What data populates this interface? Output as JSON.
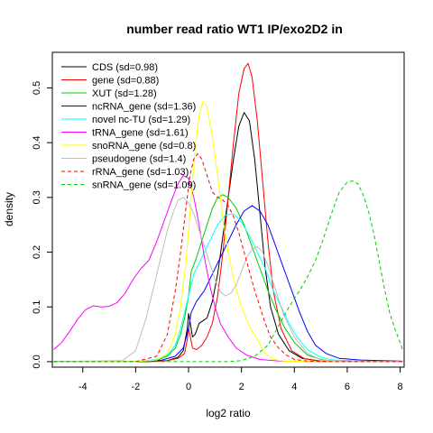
{
  "chart_data": {
    "type": "line",
    "title": "number read ratio WT1 IP/exo2D2 in",
    "xlabel": "log2 ratio",
    "ylabel": "density",
    "xlim": [
      -5.15,
      8.15
    ],
    "ylim": [
      -0.01,
      0.565
    ],
    "x_ticks": [
      -4,
      -2,
      0,
      2,
      4,
      6,
      8
    ],
    "y_ticks": [
      0.0,
      0.1,
      0.2,
      0.3,
      0.4,
      0.5
    ],
    "x_tick_labels": [
      "-4",
      "-2",
      "0",
      "2",
      "4",
      "6",
      "8"
    ],
    "y_tick_labels": [
      "0.0",
      "0.1",
      "0.2",
      "0.3",
      "0.4",
      "0.5"
    ],
    "grid": false,
    "legend_position": "top-left",
    "series": [
      {
        "name": "CDS (sd=0.98)",
        "color": "#000000",
        "dash": "solid",
        "points": [
          [
            -5.1,
            0
          ],
          [
            -1.5,
            0
          ],
          [
            -0.8,
            0.002
          ],
          [
            -0.4,
            0.008
          ],
          [
            -0.2,
            0.02
          ],
          [
            -0.05,
            0.06
          ],
          [
            0.0,
            0.088
          ],
          [
            0.05,
            0.075
          ],
          [
            0.15,
            0.045
          ],
          [
            0.25,
            0.05
          ],
          [
            0.4,
            0.07
          ],
          [
            0.55,
            0.075
          ],
          [
            0.7,
            0.08
          ],
          [
            0.9,
            0.11
          ],
          [
            1.1,
            0.16
          ],
          [
            1.3,
            0.23
          ],
          [
            1.5,
            0.3
          ],
          [
            1.7,
            0.37
          ],
          [
            1.9,
            0.43
          ],
          [
            2.1,
            0.455
          ],
          [
            2.3,
            0.44
          ],
          [
            2.5,
            0.37
          ],
          [
            2.7,
            0.27
          ],
          [
            2.9,
            0.17
          ],
          [
            3.1,
            0.1
          ],
          [
            3.4,
            0.05
          ],
          [
            3.8,
            0.02
          ],
          [
            4.3,
            0.006
          ],
          [
            5.0,
            0.001
          ],
          [
            6.5,
            0
          ],
          [
            8.1,
            0
          ]
        ]
      },
      {
        "name": "gene (sd=0.88)",
        "color": "#ff0000",
        "dash": "solid",
        "points": [
          [
            -5.1,
            0
          ],
          [
            -1.5,
            0
          ],
          [
            -0.8,
            0.002
          ],
          [
            -0.4,
            0.006
          ],
          [
            -0.15,
            0.015
          ],
          [
            -0.05,
            0.04
          ],
          [
            0.0,
            0.062
          ],
          [
            0.05,
            0.05
          ],
          [
            0.15,
            0.025
          ],
          [
            0.3,
            0.022
          ],
          [
            0.5,
            0.03
          ],
          [
            0.7,
            0.045
          ],
          [
            0.9,
            0.07
          ],
          [
            1.1,
            0.12
          ],
          [
            1.3,
            0.2
          ],
          [
            1.5,
            0.3
          ],
          [
            1.7,
            0.4
          ],
          [
            1.9,
            0.49
          ],
          [
            2.1,
            0.535
          ],
          [
            2.25,
            0.545
          ],
          [
            2.4,
            0.52
          ],
          [
            2.6,
            0.44
          ],
          [
            2.8,
            0.33
          ],
          [
            3.0,
            0.22
          ],
          [
            3.2,
            0.13
          ],
          [
            3.5,
            0.06
          ],
          [
            3.9,
            0.02
          ],
          [
            4.4,
            0.005
          ],
          [
            5.0,
            0.001
          ],
          [
            6.5,
            0
          ],
          [
            8.1,
            0
          ]
        ]
      },
      {
        "name": "XUT (sd=1.28)",
        "color": "#00cd00",
        "dash": "solid",
        "points": [
          [
            -5.1,
            0
          ],
          [
            -2.0,
            0
          ],
          [
            -1.2,
            0.003
          ],
          [
            -0.8,
            0.01
          ],
          [
            -0.5,
            0.025
          ],
          [
            -0.3,
            0.05
          ],
          [
            -0.15,
            0.08
          ],
          [
            0.0,
            0.12
          ],
          [
            0.1,
            0.165
          ],
          [
            0.3,
            0.19
          ],
          [
            0.5,
            0.22
          ],
          [
            0.7,
            0.25
          ],
          [
            0.9,
            0.28
          ],
          [
            1.1,
            0.3
          ],
          [
            1.3,
            0.305
          ],
          [
            1.5,
            0.3
          ],
          [
            1.8,
            0.28
          ],
          [
            2.1,
            0.25
          ],
          [
            2.4,
            0.21
          ],
          [
            2.7,
            0.17
          ],
          [
            3.0,
            0.13
          ],
          [
            3.3,
            0.095
          ],
          [
            3.6,
            0.065
          ],
          [
            4.0,
            0.035
          ],
          [
            4.5,
            0.012
          ],
          [
            5.0,
            0.004
          ],
          [
            5.5,
            0.001
          ],
          [
            6.5,
            0
          ],
          [
            8.1,
            0
          ]
        ]
      },
      {
        "name": "ncRNA_gene (sd=1.36)",
        "color": "#0000ff",
        "dash": "solid",
        "points": [
          [
            -5.1,
            0
          ],
          [
            -2.0,
            0
          ],
          [
            -1.0,
            0.003
          ],
          [
            -0.5,
            0.01
          ],
          [
            -0.2,
            0.025
          ],
          [
            0.0,
            0.06
          ],
          [
            0.1,
            0.09
          ],
          [
            0.3,
            0.11
          ],
          [
            0.6,
            0.13
          ],
          [
            0.9,
            0.16
          ],
          [
            1.2,
            0.19
          ],
          [
            1.5,
            0.22
          ],
          [
            1.8,
            0.25
          ],
          [
            2.1,
            0.275
          ],
          [
            2.4,
            0.285
          ],
          [
            2.7,
            0.275
          ],
          [
            3.0,
            0.25
          ],
          [
            3.3,
            0.21
          ],
          [
            3.6,
            0.17
          ],
          [
            3.9,
            0.13
          ],
          [
            4.2,
            0.09
          ],
          [
            4.5,
            0.055
          ],
          [
            4.8,
            0.03
          ],
          [
            5.2,
            0.015
          ],
          [
            5.7,
            0.006
          ],
          [
            6.5,
            0.003
          ],
          [
            7.3,
            0.002
          ],
          [
            8.1,
            0.001
          ]
        ]
      },
      {
        "name": "novel nc-TU (sd=1.29)",
        "color": "#00ffff",
        "dash": "solid",
        "points": [
          [
            -5.1,
            0
          ],
          [
            -2.0,
            0
          ],
          [
            -1.2,
            0.004
          ],
          [
            -0.8,
            0.012
          ],
          [
            -0.5,
            0.03
          ],
          [
            -0.3,
            0.06
          ],
          [
            -0.1,
            0.1
          ],
          [
            0.05,
            0.13
          ],
          [
            0.2,
            0.16
          ],
          [
            0.5,
            0.19
          ],
          [
            0.8,
            0.22
          ],
          [
            1.1,
            0.25
          ],
          [
            1.4,
            0.268
          ],
          [
            1.7,
            0.27
          ],
          [
            2.0,
            0.255
          ],
          [
            2.3,
            0.23
          ],
          [
            2.6,
            0.2
          ],
          [
            2.9,
            0.17
          ],
          [
            3.2,
            0.13
          ],
          [
            3.5,
            0.1
          ],
          [
            3.8,
            0.07
          ],
          [
            4.1,
            0.045
          ],
          [
            4.5,
            0.022
          ],
          [
            5.0,
            0.008
          ],
          [
            5.5,
            0.003
          ],
          [
            6.5,
            0.001
          ],
          [
            8.1,
            0
          ]
        ]
      },
      {
        "name": "tRNA_gene (sd=1.61)",
        "color": "#ff00ff",
        "dash": "solid",
        "points": [
          [
            -5.1,
            0.022
          ],
          [
            -4.8,
            0.035
          ],
          [
            -4.5,
            0.055
          ],
          [
            -4.2,
            0.077
          ],
          [
            -3.9,
            0.095
          ],
          [
            -3.6,
            0.102
          ],
          [
            -3.3,
            0.1
          ],
          [
            -3.0,
            0.101
          ],
          [
            -2.7,
            0.108
          ],
          [
            -2.4,
            0.125
          ],
          [
            -2.1,
            0.15
          ],
          [
            -1.8,
            0.17
          ],
          [
            -1.5,
            0.185
          ],
          [
            -1.2,
            0.22
          ],
          [
            -0.9,
            0.26
          ],
          [
            -0.6,
            0.3
          ],
          [
            -0.4,
            0.325
          ],
          [
            -0.2,
            0.34
          ],
          [
            0.0,
            0.335
          ],
          [
            0.2,
            0.3
          ],
          [
            0.4,
            0.25
          ],
          [
            0.6,
            0.19
          ],
          [
            0.8,
            0.14
          ],
          [
            1.0,
            0.1
          ],
          [
            1.2,
            0.07
          ],
          [
            1.5,
            0.045
          ],
          [
            1.8,
            0.025
          ],
          [
            2.2,
            0.012
          ],
          [
            2.7,
            0.004
          ],
          [
            3.5,
            0.001
          ],
          [
            5.0,
            0
          ],
          [
            8.1,
            0
          ]
        ]
      },
      {
        "name": "snoRNA_gene (sd=0.8)",
        "color": "#ffff00",
        "dash": "solid",
        "points": [
          [
            -5.1,
            0
          ],
          [
            -2.0,
            0
          ],
          [
            -1.2,
            0.003
          ],
          [
            -0.8,
            0.015
          ],
          [
            -0.5,
            0.05
          ],
          [
            -0.3,
            0.1
          ],
          [
            -0.1,
            0.18
          ],
          [
            0.0,
            0.24
          ],
          [
            0.1,
            0.3
          ],
          [
            0.25,
            0.39
          ],
          [
            0.4,
            0.45
          ],
          [
            0.55,
            0.475
          ],
          [
            0.7,
            0.465
          ],
          [
            0.9,
            0.41
          ],
          [
            1.1,
            0.34
          ],
          [
            1.3,
            0.26
          ],
          [
            1.5,
            0.2
          ],
          [
            1.7,
            0.15
          ],
          [
            2.0,
            0.1
          ],
          [
            2.3,
            0.065
          ],
          [
            2.6,
            0.04
          ],
          [
            2.9,
            0.015
          ],
          [
            3.2,
            0.004
          ],
          [
            3.6,
            0.001
          ],
          [
            5.0,
            0
          ],
          [
            8.1,
            0
          ]
        ]
      },
      {
        "name": "pseudogene (sd=1.4)",
        "color": "#bebebe",
        "dash": "solid",
        "points": [
          [
            -5.1,
            0
          ],
          [
            -2.5,
            0.002
          ],
          [
            -2.0,
            0.02
          ],
          [
            -1.6,
            0.08
          ],
          [
            -1.3,
            0.14
          ],
          [
            -1.0,
            0.2
          ],
          [
            -0.8,
            0.24
          ],
          [
            -0.6,
            0.27
          ],
          [
            -0.4,
            0.295
          ],
          [
            -0.2,
            0.3
          ],
          [
            0.0,
            0.29
          ],
          [
            0.2,
            0.27
          ],
          [
            0.4,
            0.24
          ],
          [
            0.6,
            0.21
          ],
          [
            0.8,
            0.18
          ],
          [
            1.0,
            0.15
          ],
          [
            1.2,
            0.128
          ],
          [
            1.4,
            0.12
          ],
          [
            1.6,
            0.125
          ],
          [
            1.8,
            0.14
          ],
          [
            2.0,
            0.165
          ],
          [
            2.2,
            0.19
          ],
          [
            2.4,
            0.205
          ],
          [
            2.6,
            0.21
          ],
          [
            2.8,
            0.2
          ],
          [
            3.0,
            0.175
          ],
          [
            3.3,
            0.13
          ],
          [
            3.6,
            0.085
          ],
          [
            4.0,
            0.045
          ],
          [
            4.5,
            0.015
          ],
          [
            5.0,
            0.003
          ],
          [
            6.0,
            0
          ],
          [
            8.1,
            0
          ]
        ]
      },
      {
        "name": "rRNA_gene (sd=1.03)",
        "color": "#ff0000",
        "dash": "dashed",
        "points": [
          [
            -5.1,
            0
          ],
          [
            -2.0,
            0
          ],
          [
            -1.2,
            0.01
          ],
          [
            -0.8,
            0.05
          ],
          [
            -0.5,
            0.13
          ],
          [
            -0.3,
            0.2
          ],
          [
            -0.1,
            0.28
          ],
          [
            0.05,
            0.34
          ],
          [
            0.2,
            0.37
          ],
          [
            0.35,
            0.38
          ],
          [
            0.5,
            0.37
          ],
          [
            0.7,
            0.34
          ],
          [
            0.9,
            0.31
          ],
          [
            1.1,
            0.3
          ],
          [
            1.3,
            0.295
          ],
          [
            1.5,
            0.285
          ],
          [
            1.7,
            0.265
          ],
          [
            1.9,
            0.235
          ],
          [
            2.1,
            0.2
          ],
          [
            2.3,
            0.165
          ],
          [
            2.5,
            0.13
          ],
          [
            2.7,
            0.1
          ],
          [
            2.9,
            0.07
          ],
          [
            3.1,
            0.045
          ],
          [
            3.4,
            0.025
          ],
          [
            3.7,
            0.012
          ],
          [
            4.0,
            0.004
          ],
          [
            4.5,
            0.001
          ],
          [
            5.5,
            0
          ],
          [
            8.1,
            0
          ]
        ]
      },
      {
        "name": "snRNA_gene (sd=1.09)",
        "color": "#00cd00",
        "dash": "dashed",
        "points": [
          [
            -5.1,
            0
          ],
          [
            1.5,
            0
          ],
          [
            2.0,
            0.002
          ],
          [
            2.5,
            0.01
          ],
          [
            3.0,
            0.03
          ],
          [
            3.4,
            0.065
          ],
          [
            3.8,
            0.1
          ],
          [
            4.2,
            0.13
          ],
          [
            4.5,
            0.155
          ],
          [
            4.8,
            0.185
          ],
          [
            5.1,
            0.225
          ],
          [
            5.4,
            0.27
          ],
          [
            5.7,
            0.31
          ],
          [
            6.0,
            0.328
          ],
          [
            6.2,
            0.33
          ],
          [
            6.4,
            0.325
          ],
          [
            6.6,
            0.305
          ],
          [
            6.8,
            0.275
          ],
          [
            7.0,
            0.235
          ],
          [
            7.2,
            0.185
          ],
          [
            7.4,
            0.135
          ],
          [
            7.6,
            0.09
          ],
          [
            7.8,
            0.06
          ],
          [
            8.0,
            0.035
          ],
          [
            8.1,
            0.02
          ]
        ]
      }
    ]
  }
}
